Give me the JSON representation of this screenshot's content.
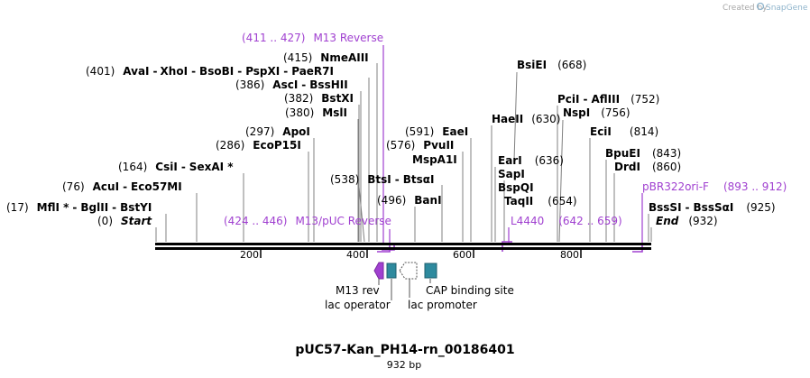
{
  "watermark": {
    "prefix": "Created by",
    "brand": "SnapGene"
  },
  "title": "pUC57-Kan_PH14-rn_00186401",
  "length_label": "932 bp",
  "axis": {
    "total_bp": 932,
    "ticks": [
      {
        "value": 200,
        "label": "200"
      },
      {
        "value": 400,
        "label": "400"
      },
      {
        "value": 600,
        "label": "600"
      },
      {
        "value": 800,
        "label": "800"
      }
    ]
  },
  "primer_color": "#a040d0",
  "feature_colors": {
    "rev": "#a040d0",
    "operator": "#2e8a9e",
    "promoter": "#ffffff",
    "cap": "#2e8a9e"
  },
  "sites": [
    {
      "id": "start",
      "pos": "(0)",
      "names": [
        "Start"
      ],
      "italic": true
    },
    {
      "id": "mfli",
      "pos": "(17)",
      "names": [
        "MflI *",
        "BglII",
        "BstYI"
      ]
    },
    {
      "id": "acui",
      "pos": "(76)",
      "names": [
        "AcuI",
        "Eco57MI"
      ]
    },
    {
      "id": "csii",
      "pos": "(164)",
      "names": [
        "CsiI",
        "SexAI *"
      ]
    },
    {
      "id": "ecop15i",
      "pos": "(286)",
      "names": [
        "EcoP15I"
      ]
    },
    {
      "id": "apoi",
      "pos": "(297)",
      "names": [
        "ApoI"
      ]
    },
    {
      "id": "msli",
      "pos": "(380)",
      "names": [
        "MslI"
      ]
    },
    {
      "id": "bstxi",
      "pos": "(382)",
      "names": [
        "BstXI"
      ]
    },
    {
      "id": "asci",
      "pos": "(386)",
      "names": [
        "AscI",
        "BssHII"
      ]
    },
    {
      "id": "avai",
      "pos": "(401)",
      "names": [
        "AvaI",
        "XhoI",
        "BsoBI",
        "PspXI",
        "PaeR7I"
      ]
    },
    {
      "id": "nmeaiii",
      "pos": "(415)",
      "names": [
        "NmeAIII"
      ]
    },
    {
      "id": "bani",
      "pos": "(496)",
      "names": [
        "BanI"
      ]
    },
    {
      "id": "btsi",
      "pos": "(538)",
      "names": [
        "BtsI",
        "BtsαI"
      ]
    },
    {
      "id": "mspa1i",
      "pos": "",
      "names": [
        "MspA1I"
      ]
    },
    {
      "id": "pvuii",
      "pos": "(576)",
      "names": [
        "PvuII"
      ]
    },
    {
      "id": "eaei",
      "pos": "(591)",
      "names": [
        "EaeI"
      ]
    },
    {
      "id": "haeii",
      "pos": "(630)",
      "names": [
        "HaeII"
      ]
    },
    {
      "id": "bsiei",
      "pos": "(668)",
      "names": [
        "BsiEI"
      ]
    },
    {
      "id": "eari",
      "pos": "(636)",
      "names": [
        "EarI"
      ]
    },
    {
      "id": "sapi",
      "pos": "",
      "names": [
        "SapI"
      ]
    },
    {
      "id": "bspqi",
      "pos": "",
      "names": [
        "BspQI"
      ]
    },
    {
      "id": "taqii",
      "pos": "(654)",
      "names": [
        "TaqII"
      ]
    },
    {
      "id": "pcii",
      "pos": "(752)",
      "names": [
        "PciI",
        "AflIII"
      ]
    },
    {
      "id": "nspi",
      "pos": "(756)",
      "names": [
        "NspI"
      ]
    },
    {
      "id": "ecii",
      "pos": "(814)",
      "names": [
        "EciI"
      ]
    },
    {
      "id": "bpuei",
      "pos": "(843)",
      "names": [
        "BpuEI"
      ]
    },
    {
      "id": "drdi",
      "pos": "(860)",
      "names": [
        "DrdI"
      ]
    },
    {
      "id": "bsssi",
      "pos": "(925)",
      "names": [
        "BssSI",
        "BssSαI"
      ]
    },
    {
      "id": "end",
      "pos": "(932)",
      "names": [
        "End"
      ],
      "italic": true
    }
  ],
  "primers": [
    {
      "id": "m13rev",
      "range": "(411 .. 427)",
      "name": "M13 Reverse"
    },
    {
      "id": "m13puc",
      "range": "(424 .. 446)",
      "name": "M13/pUC Reverse"
    },
    {
      "id": "l4440",
      "name": "L4440",
      "range": "(642 .. 659)"
    },
    {
      "id": "pbr",
      "name": "pBR322ori-F",
      "range": "(893 .. 912)"
    }
  ],
  "features": [
    {
      "id": "m13rev",
      "label": "M13 rev"
    },
    {
      "id": "lacop",
      "label": "lac operator"
    },
    {
      "id": "lacprom",
      "label": "lac promoter"
    },
    {
      "id": "cap",
      "label": "CAP binding site"
    }
  ]
}
